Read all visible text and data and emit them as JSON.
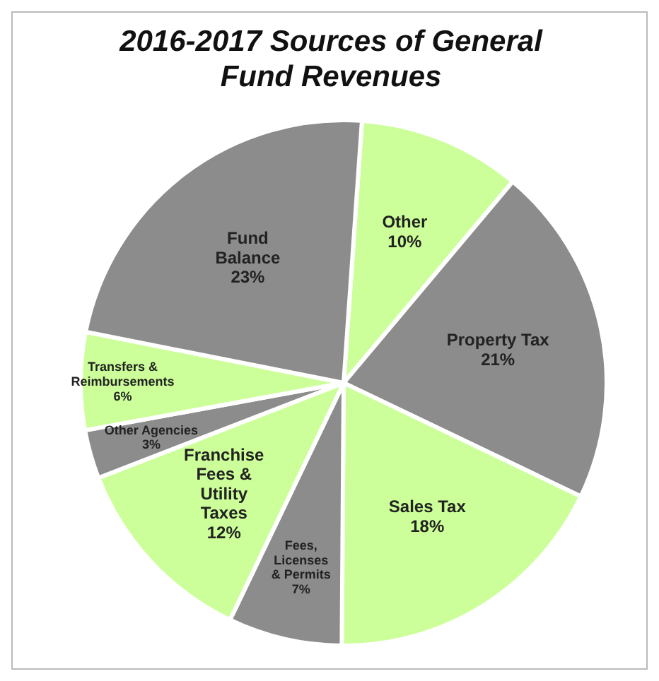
{
  "chart_data": {
    "type": "pie",
    "title": "2016-2017 Sources of General Fund Revenues",
    "categories": [
      "Other",
      "Property Tax",
      "Sales Tax",
      "Fees, Licenses & Permits",
      "Franchise Fees & Utility Taxes",
      "Other Agencies",
      "Transfers & Reimbursements",
      "Fund Balance"
    ],
    "values": [
      10,
      21,
      18,
      7,
      12,
      3,
      6,
      23
    ],
    "value_labels": [
      "10%",
      "21%",
      "18%",
      "7%",
      "12%",
      "3%",
      "6%",
      "23%"
    ],
    "colors": [
      "#ccff99",
      "#8c8c8c",
      "#ccff99",
      "#8c8c8c",
      "#ccff99",
      "#8c8c8c",
      "#ccff99",
      "#8c8c8c"
    ],
    "legend": false
  }
}
